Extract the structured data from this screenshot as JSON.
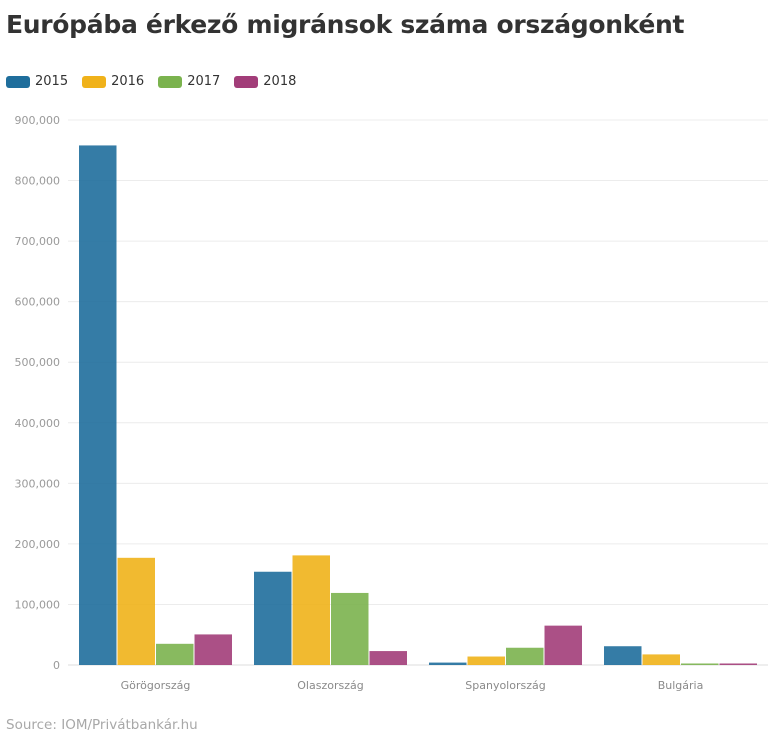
{
  "chart_data": {
    "type": "bar",
    "title": "Európába érkező migránsok száma országonként",
    "categories": [
      "Görögország",
      "Olaszország",
      "Spanyolország",
      "Bulgária"
    ],
    "series": [
      {
        "name": "2015",
        "color": "#1f6e9c",
        "values": [
          858000,
          154000,
          4000,
          31000
        ]
      },
      {
        "name": "2016",
        "color": "#f0b21a",
        "values": [
          177000,
          181000,
          14000,
          17500
        ]
      },
      {
        "name": "2017",
        "color": "#7bb34e",
        "values": [
          35000,
          119000,
          28500,
          2500
        ]
      },
      {
        "name": "2018",
        "color": "#a23d79",
        "values": [
          50500,
          23000,
          65000,
          2500
        ]
      }
    ],
    "ylim": [
      0,
      900000
    ],
    "yticks": [
      "0",
      "100,000",
      "200,000",
      "300,000",
      "400,000",
      "500,000",
      "600,000",
      "700,000",
      "800,000",
      "900,000"
    ],
    "ytick_values": [
      0,
      100000,
      200000,
      300000,
      400000,
      500000,
      600000,
      700000,
      800000,
      900000
    ],
    "grid": true,
    "legend": "top-left"
  },
  "source": "Source: IOM/Privátbankár.hu"
}
